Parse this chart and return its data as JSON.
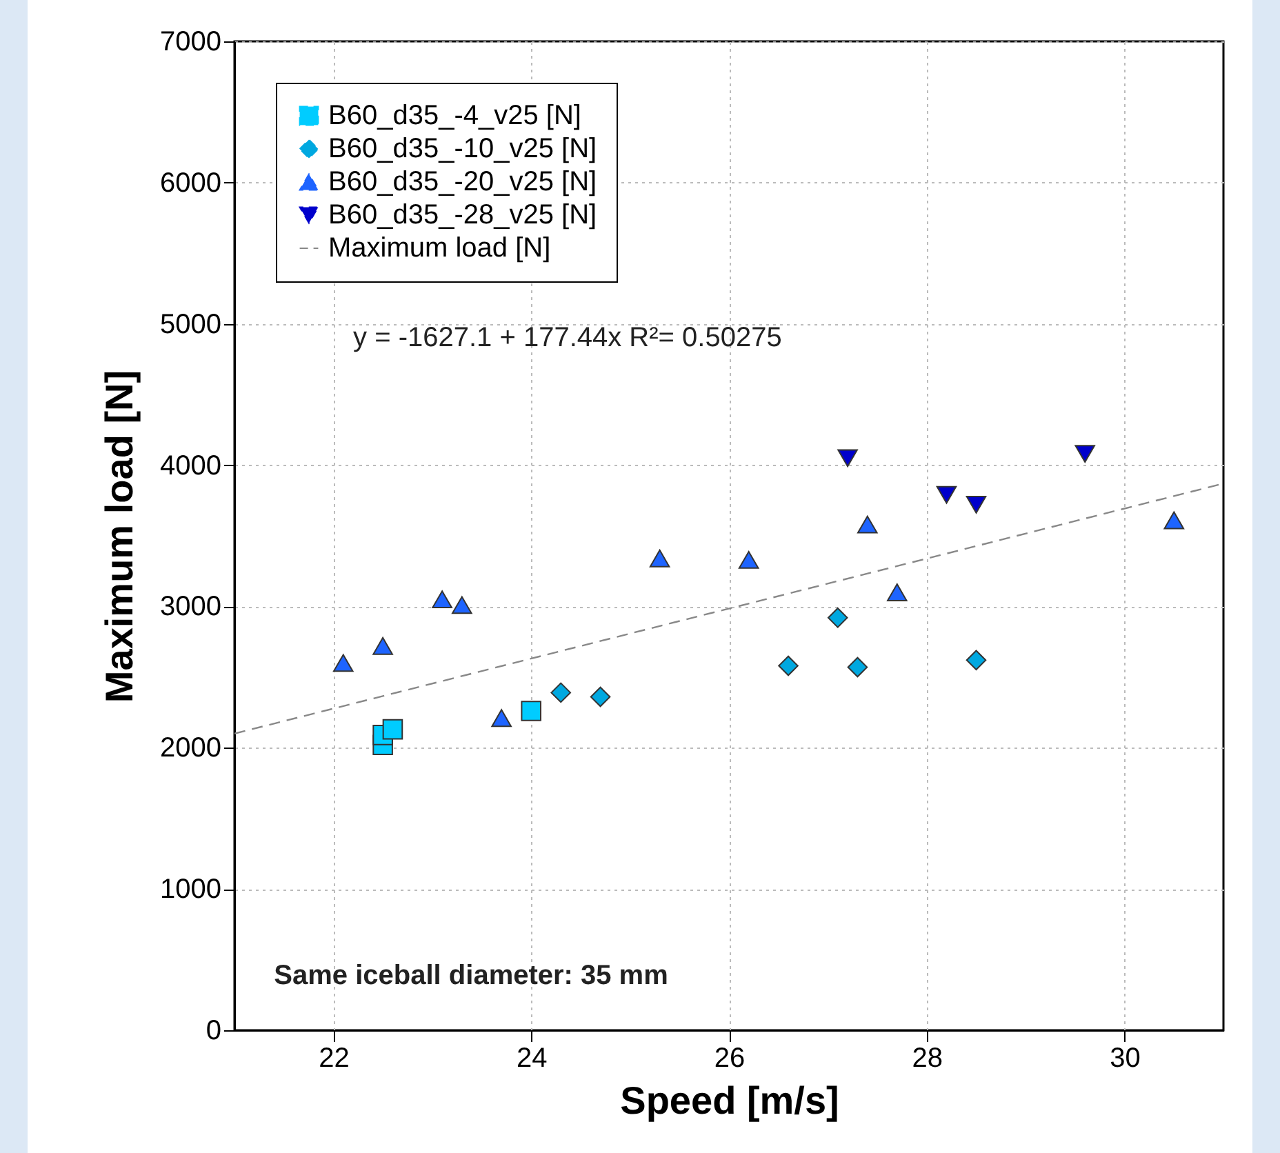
{
  "chart_data": {
    "type": "scatter",
    "xlabel": "Speed [m/s]",
    "ylabel": "Maximum load [N]",
    "xlim": [
      21,
      31
    ],
    "xticks": [
      22,
      24,
      26,
      28,
      30
    ],
    "ylim": [
      0,
      7000
    ],
    "yticks": [
      0,
      1000,
      2000,
      3000,
      4000,
      5000,
      6000,
      7000
    ],
    "grid": true,
    "legend": "top left",
    "annotations": [
      "y = -1627.1 + 177.44x   R²= 0.50275",
      "Same iceball diameter: 35 mm"
    ],
    "series": [
      {
        "name": "B60_d35_-4_v25 [N]",
        "color": "#00ccff",
        "marker": "square",
        "x": [
          22.5,
          22.5,
          22.6,
          24.0
        ],
        "values": [
          2020,
          2090,
          2130,
          2260
        ]
      },
      {
        "name": "B60_d35_-10_v25 [N]",
        "color": "#00a8e0",
        "marker": "diamond",
        "x": [
          24.3,
          24.7,
          26.6,
          27.1,
          27.3,
          28.5
        ],
        "values": [
          2390,
          2360,
          2580,
          2920,
          2570,
          2620
        ]
      },
      {
        "name": "B60_d35_-20_v25 [N]",
        "color": "#1e64ff",
        "marker": "triangle",
        "x": [
          22.1,
          22.5,
          23.1,
          23.3,
          23.7,
          25.3,
          26.2,
          27.4,
          27.7,
          30.5
        ],
        "values": [
          2600,
          2720,
          3050,
          3010,
          2210,
          3340,
          3330,
          3580,
          3100,
          3610
        ]
      },
      {
        "name": "B60_d35_-28_v25 [N]",
        "color": "#0000cc",
        "marker": "triangle-down",
        "x": [
          27.2,
          28.2,
          28.5,
          29.6
        ],
        "values": [
          4050,
          3790,
          3720,
          4080
        ]
      },
      {
        "name": "Maximum load [N]",
        "type": "line",
        "color": "#888888",
        "line_style": "dashed",
        "x": [
          21,
          31
        ],
        "values": [
          2100,
          3870
        ]
      }
    ]
  }
}
